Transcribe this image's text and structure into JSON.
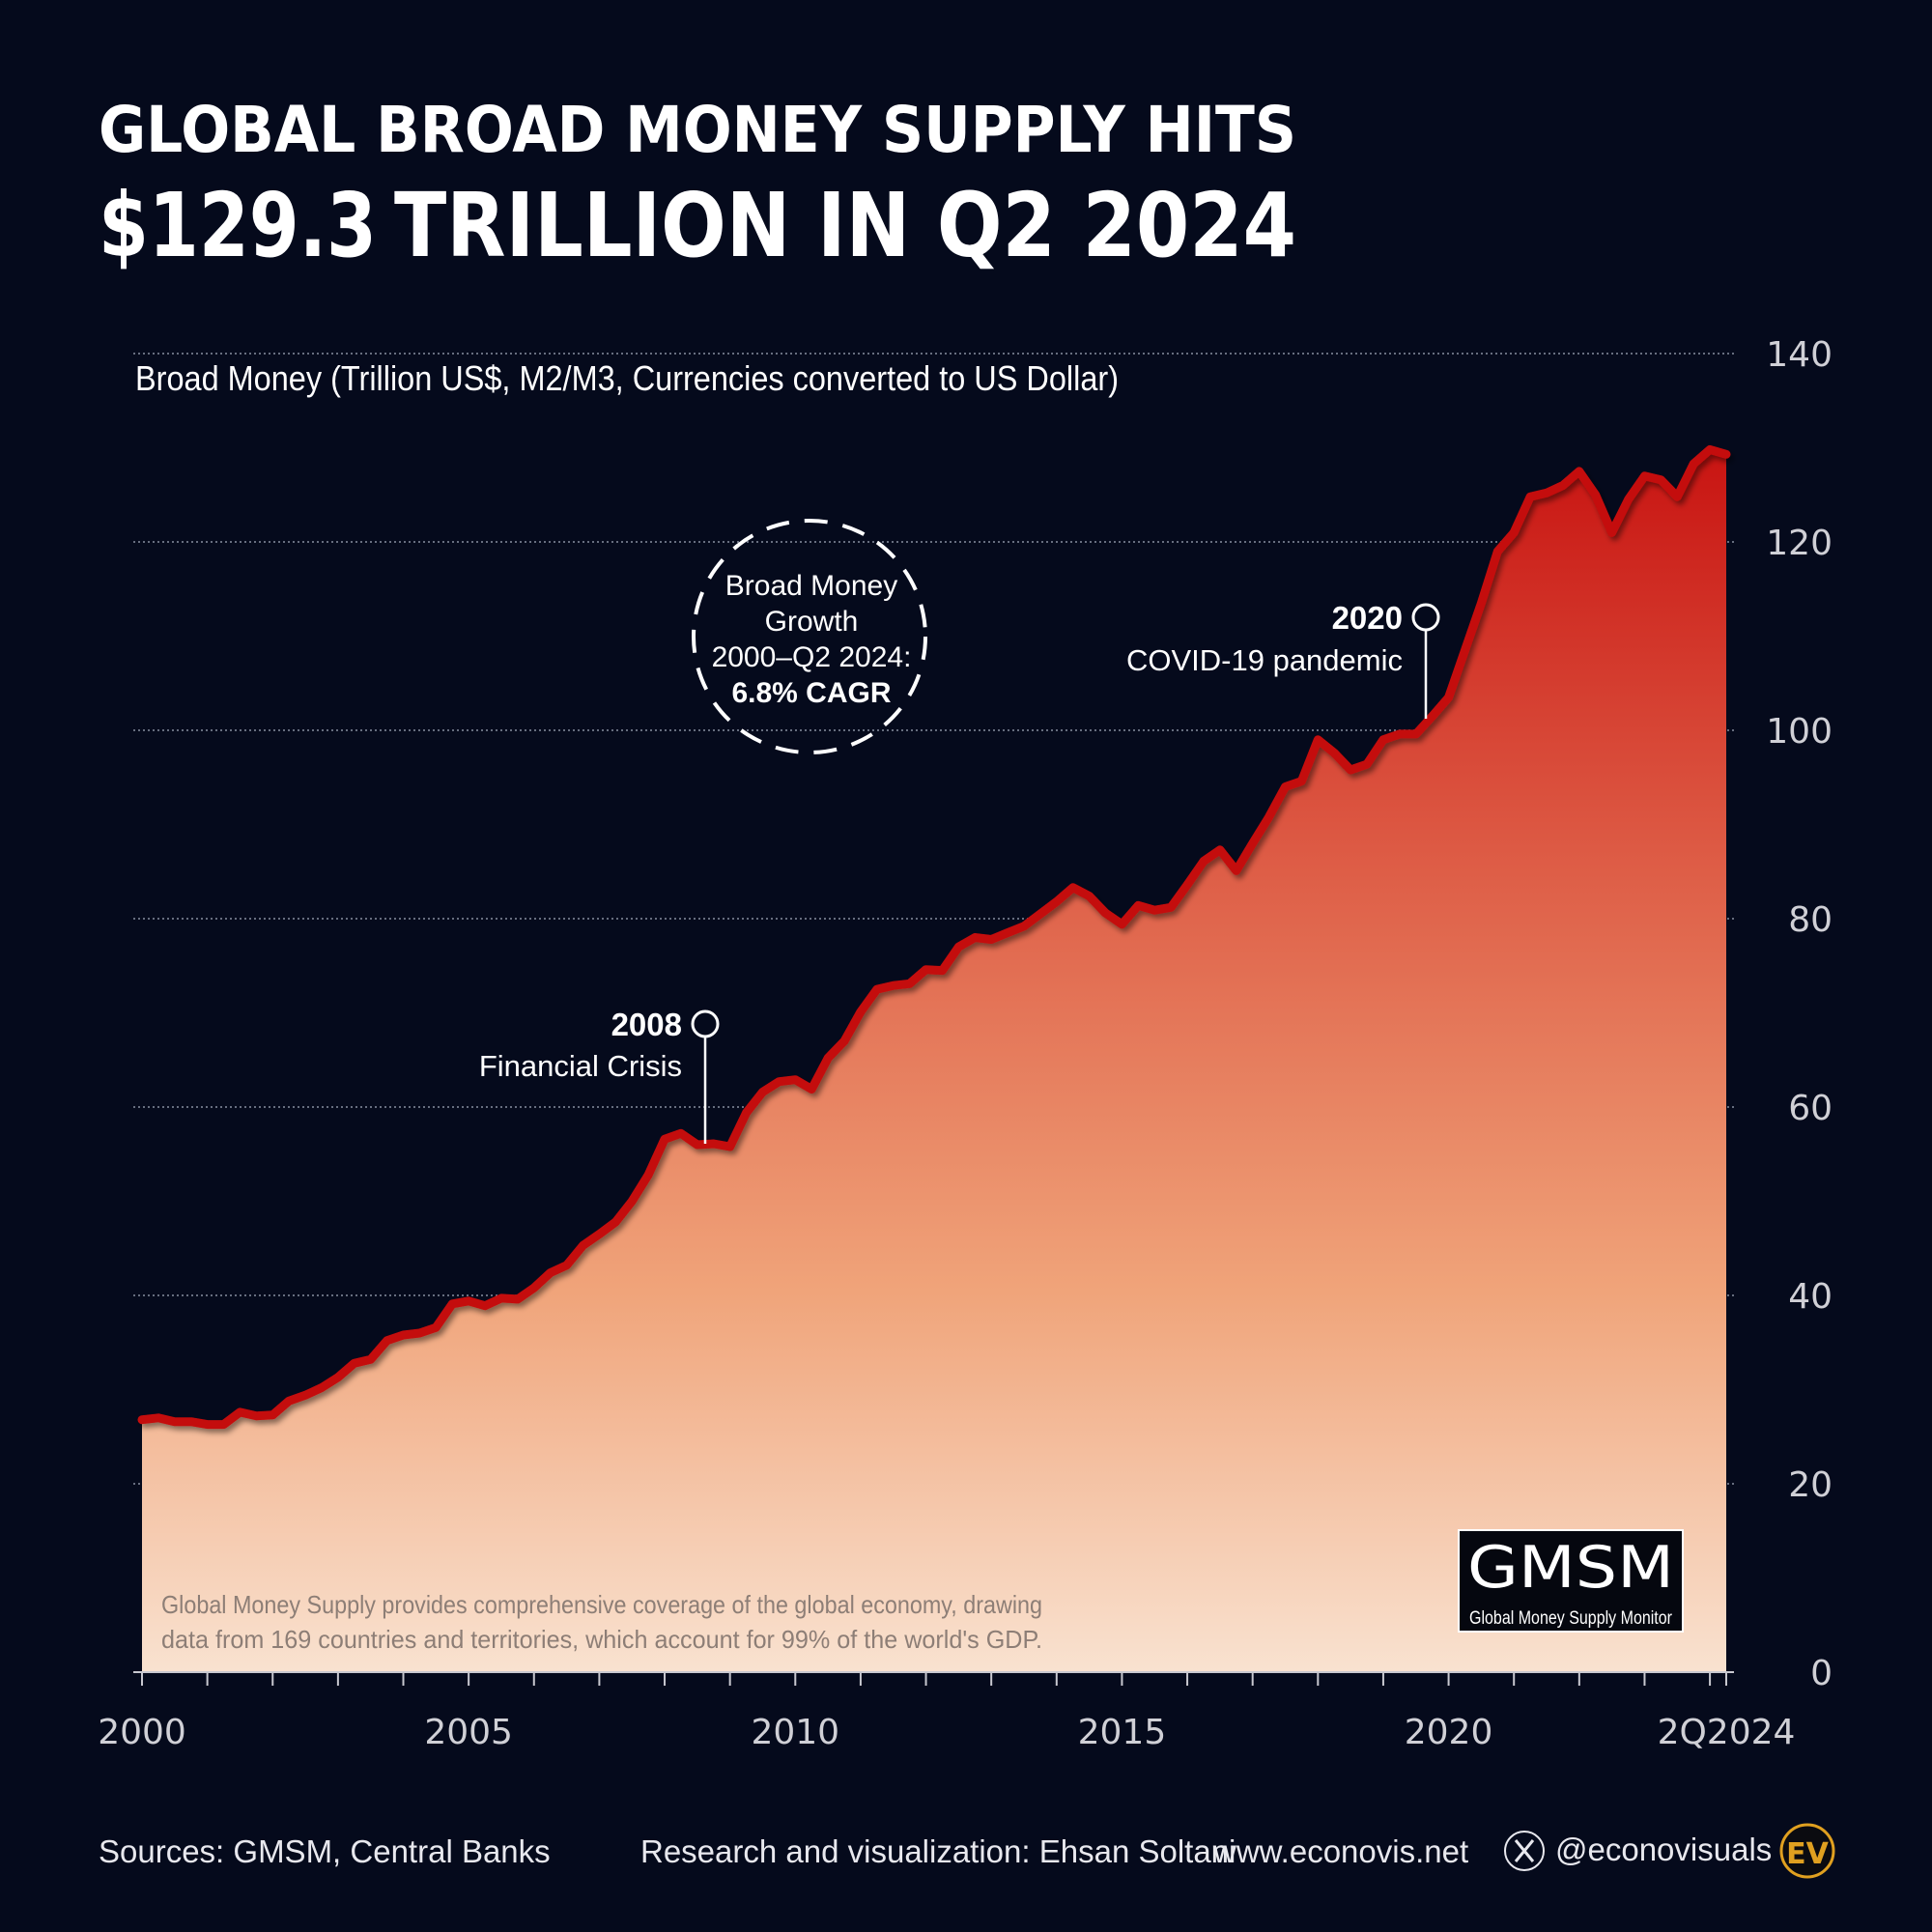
{
  "header": {
    "title_line1": "GLOBAL BROAD MONEY SUPPLY HITS",
    "title_highlight": "$129.3",
    "title_line2_rest": " TRILLION IN Q2 2024",
    "highlight_color": "#d40f0f"
  },
  "chart_data": {
    "type": "area",
    "title": "Broad Money (Trillion US$, M2/M3, Currencies converted to US Dollar)",
    "xlabel": "",
    "ylabel": "",
    "frequency": "quarterly",
    "x_range": [
      "2000 Q1",
      "2024 Q2"
    ],
    "ylim": [
      0,
      140
    ],
    "y_ticks": [
      "0",
      "20",
      "40",
      "60",
      "80",
      "100",
      "120",
      "140"
    ],
    "x_ticks": [
      "2000",
      "2005",
      "2010",
      "2015",
      "2020",
      "2Q2024"
    ],
    "grid": true,
    "y_axis_side": "right",
    "line_color": "#c40a0a",
    "fill_gradient": [
      "#c60c0c",
      "#f9e2d0"
    ],
    "values": [
      26.8,
      27.0,
      26.6,
      26.6,
      26.3,
      26.3,
      27.6,
      27.2,
      27.3,
      28.8,
      29.4,
      30.2,
      31.3,
      32.8,
      33.2,
      35.2,
      35.8,
      36.0,
      36.6,
      39.1,
      39.4,
      38.9,
      39.7,
      39.6,
      40.8,
      42.4,
      43.2,
      45.3,
      46.5,
      47.8,
      50.0,
      52.8,
      56.6,
      57.2,
      56.0,
      56.1,
      55.8,
      59.4,
      61.6,
      62.7,
      62.9,
      61.9,
      65.2,
      67.0,
      70.1,
      72.5,
      72.9,
      73.1,
      74.6,
      74.5,
      77.0,
      78.0,
      77.8,
      78.5,
      79.2,
      80.5,
      81.8,
      83.3,
      82.4,
      80.6,
      79.4,
      81.4,
      80.9,
      81.2,
      83.6,
      86.1,
      87.3,
      85.1,
      88.0,
      90.8,
      94.0,
      94.6,
      99.0,
      97.6,
      95.8,
      96.4,
      99.0,
      99.6,
      99.6,
      101.5,
      103.5,
      108.5,
      113.5,
      119.0,
      121.0,
      124.8,
      125.2,
      126.0,
      127.5,
      125.0,
      121.0,
      124.5,
      127.0,
      126.6,
      124.8,
      128.3,
      129.8,
      129.3
    ],
    "annotations": [
      {
        "year": "2008",
        "label": "Financial Crisis"
      },
      {
        "year": "2020",
        "label": "COVID-19 pandemic"
      }
    ],
    "callout": [
      "Broad Money",
      "Growth",
      "2000–Q2 2024:",
      "6.8% CAGR"
    ],
    "note": [
      "Global Money Supply provides comprehensive coverage of the global economy, drawing",
      "data from 169 countries and territories, which account for 99% of the world's GDP."
    ]
  },
  "logo": {
    "name": "GMSM",
    "subtitle": "Global Money Supply Monitor"
  },
  "footer": {
    "sources": "Sources: GMSM, Central Banks",
    "credit": "Research and visualization: Ehsan Soltani",
    "website": "www.econovis.net",
    "handle": "@econovisuals",
    "handle_icon": "x-logo-icon",
    "brand_logo": "EV",
    "brand_color": "#e0a020"
  }
}
